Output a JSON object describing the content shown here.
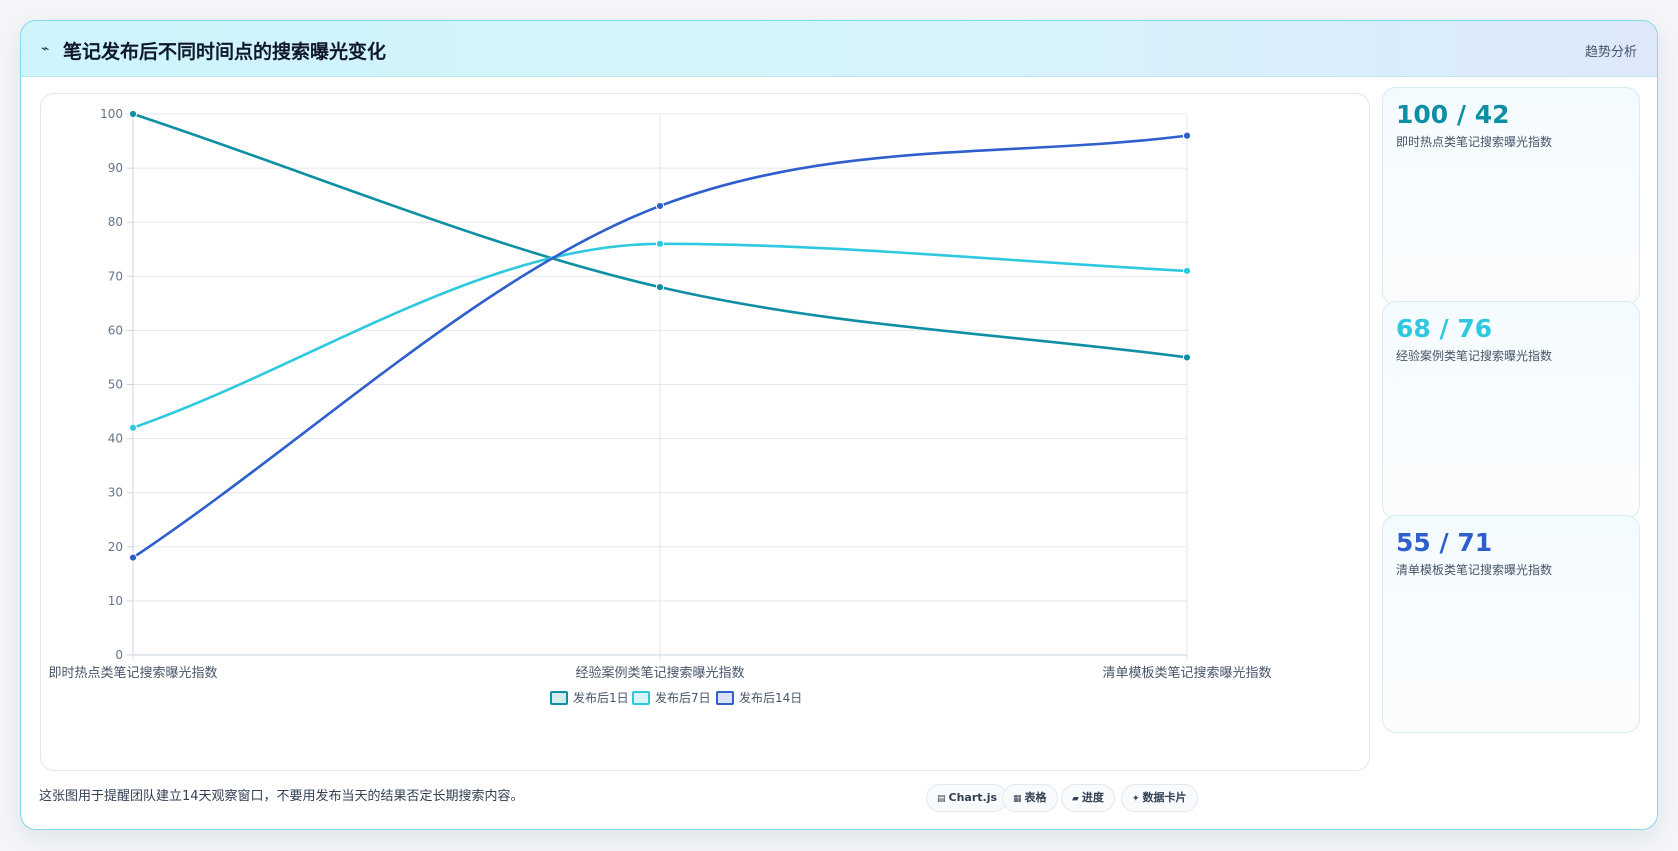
{
  "header": {
    "icon": "⌁",
    "title": "笔记发布后不同时间点的搜索曝光变化",
    "tag": "趋势分析"
  },
  "chart_data": {
    "type": "line",
    "categories": [
      "即时热点类笔记搜索曝光指数",
      "经验案例类笔记搜索曝光指数",
      "清单模板类笔记搜索曝光指数"
    ],
    "series": [
      {
        "name": "发布后1日",
        "values": [
          100,
          68,
          55
        ],
        "color": "#0e8fa3"
      },
      {
        "name": "发布后7日",
        "values": [
          42,
          76,
          71
        ],
        "color": "#2ec9df"
      },
      {
        "name": "发布后14日",
        "values": [
          18,
          83,
          96
        ],
        "color": "#2f5fcc"
      }
    ],
    "ylim": [
      0,
      100
    ],
    "yticks": [
      0,
      10,
      20,
      30,
      40,
      50,
      60,
      70,
      80,
      90,
      100
    ],
    "grid": true,
    "legend": "bottom"
  },
  "stats": [
    {
      "value": "100 / 42",
      "label": "即时热点类笔记搜索曝光指数",
      "color": "#0e8fa3"
    },
    {
      "value": "68 / 76",
      "label": "经验案例类笔记搜索曝光指数",
      "color": "#2ec9df"
    },
    {
      "value": "55 / 71",
      "label": "清单模板类笔记搜索曝光指数",
      "color": "#2f5fcc"
    }
  ],
  "footer": {
    "note": "这张图用于提醒团队建立14天观察窗口，不要用发布当天的结果否定长期搜索内容。",
    "pills": [
      {
        "icon": "▤",
        "label": "Chart.js"
      },
      {
        "icon": "▦",
        "label": "表格"
      },
      {
        "icon": "▰",
        "label": "进度"
      },
      {
        "icon": "✦",
        "label": "数据卡片"
      }
    ]
  }
}
